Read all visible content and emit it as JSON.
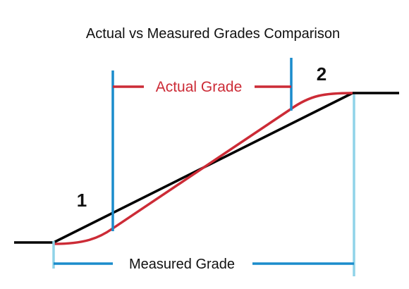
{
  "diagram": {
    "title": "Actual vs Measured Grades Comparison",
    "actual_grade_label": "Actual Grade",
    "measured_grade_label": "Measured Grade",
    "point_1_label": "1",
    "point_2_label": "2"
  },
  "colors": {
    "ground_line": "#000000",
    "actual_grade_curve": "#cc2b36",
    "actual_grade_markers": "#1a8ccc",
    "measured_grade_markers": "#8fd3e8",
    "measured_grade_dimension": "#1a8ccc"
  }
}
